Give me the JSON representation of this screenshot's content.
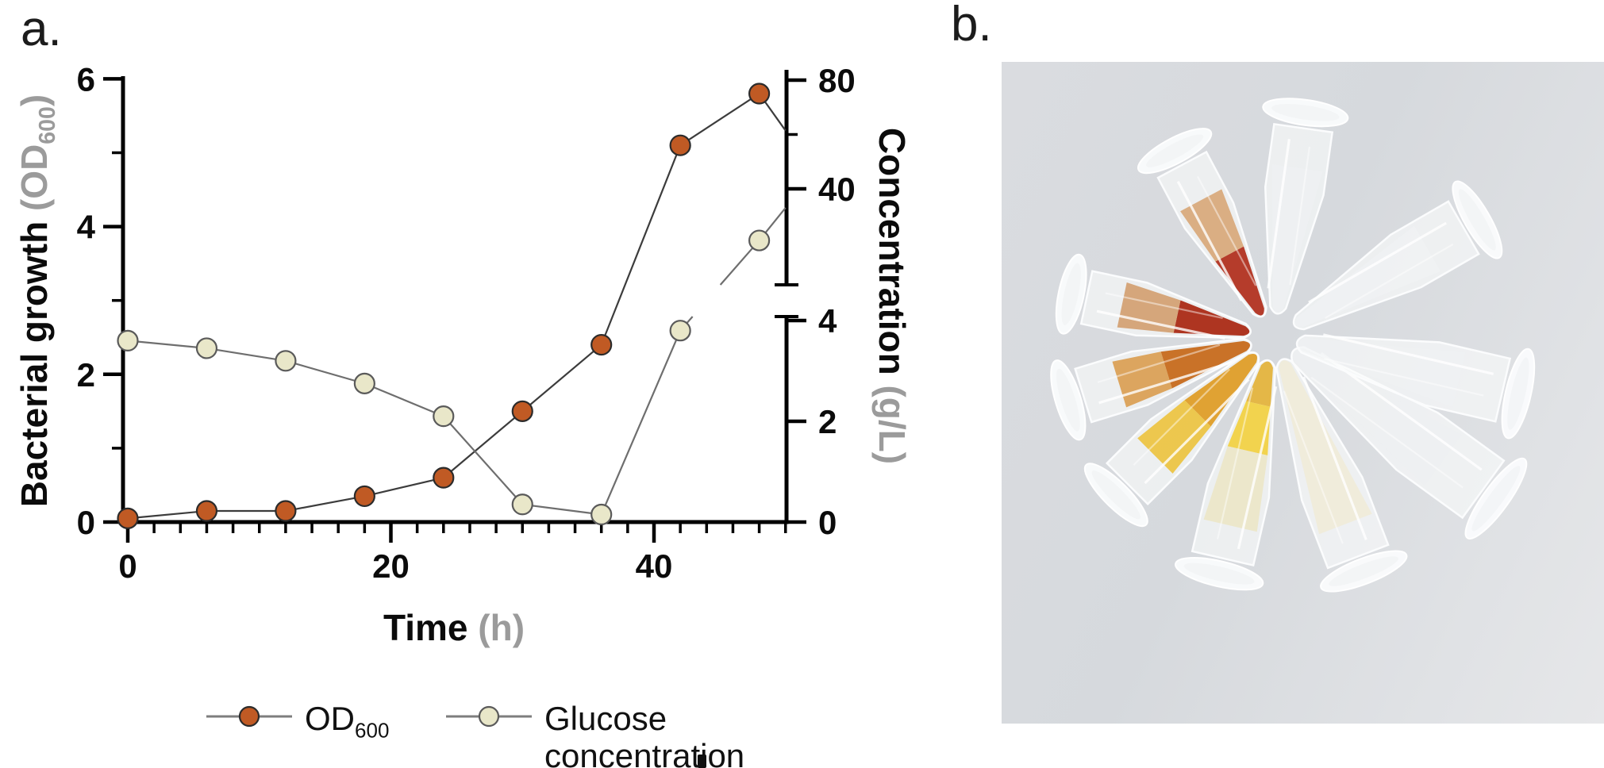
{
  "panel_a": {
    "label": "a."
  },
  "panel_b": {
    "label": "b."
  },
  "chart_data": {
    "type": "line",
    "title": "",
    "x_axis": {
      "label": "Time",
      "unit": "(h)",
      "ticks": [
        0,
        20,
        40
      ],
      "minor_tick_step": 2,
      "range": [
        0,
        50
      ]
    },
    "y_left_axis": {
      "label": "Bacterial growth",
      "unit_prefix": "(OD",
      "unit_sub": "600",
      "unit_suffix": ")",
      "ticks": [
        0,
        2,
        4,
        6
      ],
      "minor_ticks": [
        1,
        3,
        5
      ],
      "range": [
        0,
        6
      ]
    },
    "y_right_axis": {
      "label": "Concentration",
      "unit": "(g/L)",
      "axis_break": true,
      "lower_segment_ticks": [
        0,
        2,
        4
      ],
      "lower_segment_range": [
        0,
        4.1
      ],
      "upper_segment_ticks": [
        40,
        80
      ],
      "upper_segment_minor_ticks": [
        60
      ],
      "upper_segment_range": [
        5,
        84
      ]
    },
    "series": [
      {
        "name": "OD600",
        "axis": "left",
        "color": "#c05a24",
        "marker_outline": "#2b2b2b",
        "line_color": "#3c3c3c",
        "x": [
          0,
          6,
          12,
          18,
          24,
          30,
          36,
          42,
          48
        ],
        "y": [
          0.05,
          0.15,
          0.15,
          0.35,
          0.6,
          1.5,
          2.4,
          5.1,
          5.8
        ],
        "tail_segment_to": {
          "x": 50,
          "y": 5.3
        }
      },
      {
        "name": "Glucose concentration",
        "axis": "right",
        "color": "#e9e7c9",
        "marker_outline": "#5a5a5a",
        "line_color": "#6e6e6e",
        "x": [
          0,
          6,
          12,
          18,
          24,
          30,
          36,
          42,
          48
        ],
        "y": [
          3.6,
          3.45,
          3.2,
          2.75,
          2.1,
          0.35,
          0.15,
          3.8,
          21
        ],
        "tail_segment_to": {
          "x": 50,
          "y": 33
        }
      }
    ],
    "legend": [
      {
        "label": "OD",
        "sub": "600"
      },
      {
        "line1": "Glucose",
        "line2": "concentration"
      }
    ],
    "legend_position": "bottom",
    "grid": false
  },
  "photo": {
    "content": "ten microcentrifuge tubes arranged in a ring, tips to center",
    "background_color": "#d9dcdf",
    "tubes": [
      {
        "name": "tube-clear-top",
        "angle": 82,
        "dist": 340,
        "len": 300,
        "liquid": [
          {
            "from": 0,
            "to": 0.8,
            "color": "#f0f2f4",
            "opacity": 0.5
          }
        ]
      },
      {
        "name": "tube-orange-red-upper-left",
        "angle": 118,
        "dist": 315,
        "len": 280,
        "liquid": [
          {
            "from": 0,
            "to": 0.4,
            "color": "#b23120",
            "opacity": 0.95
          },
          {
            "from": 0.4,
            "to": 0.78,
            "color": "#d8a87a",
            "opacity": 0.92
          }
        ]
      },
      {
        "name": "tube-red-left",
        "angle": 168,
        "dist": 310,
        "len": 275,
        "liquid": [
          {
            "from": 0,
            "to": 0.44,
            "color": "#ab2a15",
            "opacity": 0.95
          },
          {
            "from": 0.44,
            "to": 0.8,
            "color": "#d2a071",
            "opacity": 0.92
          }
        ]
      },
      {
        "name": "tube-orange-lower-left",
        "angle": 197,
        "dist": 330,
        "len": 285,
        "liquid": [
          {
            "from": 0,
            "to": 0.5,
            "color": "#c76a1c",
            "opacity": 0.95
          },
          {
            "from": 0.5,
            "to": 0.8,
            "color": "#d99c4f",
            "opacity": 0.9
          }
        ]
      },
      {
        "name": "tube-amber-bottom-left",
        "angle": 225,
        "dist": 345,
        "len": 295,
        "liquid": [
          {
            "from": 0,
            "to": 0.45,
            "color": "#df9d28",
            "opacity": 0.95
          },
          {
            "from": 0.45,
            "to": 0.8,
            "color": "#ecc23c",
            "opacity": 0.9
          }
        ]
      },
      {
        "name": "tube-yellow-bottom",
        "angle": 257,
        "dist": 375,
        "len": 320,
        "liquid": [
          {
            "from": 0,
            "to": 0.2,
            "color": "#e3b034",
            "opacity": 0.9
          },
          {
            "from": 0.2,
            "to": 0.45,
            "color": "#f2d145",
            "opacity": 0.95
          },
          {
            "from": 0.45,
            "to": 0.85,
            "color": "#ece6c8",
            "opacity": 0.92
          }
        ]
      },
      {
        "name": "tube-cream-bottom-right",
        "angle": 291,
        "dist": 385,
        "len": 330,
        "liquid": [
          {
            "from": 0,
            "to": 0.85,
            "color": "#f0ebd7",
            "opacity": 0.85
          }
        ]
      },
      {
        "name": "tube-clear-lower-right",
        "angle": 324,
        "dist": 430,
        "len": 360,
        "liquid": [
          {
            "from": 0,
            "to": 0.8,
            "color": "#eef0f2",
            "opacity": 0.5
          }
        ]
      },
      {
        "name": "tube-clear-right",
        "angle": 347,
        "dist": 395,
        "len": 330,
        "liquid": [
          {
            "from": 0,
            "to": 0.8,
            "color": "#f0f2f4",
            "opacity": 0.5
          }
        ]
      },
      {
        "name": "tube-clear-upper-right",
        "angle": 30,
        "dist": 370,
        "len": 310,
        "liquid": [
          {
            "from": 0,
            "to": 0.8,
            "color": "#f1f3f5",
            "opacity": 0.5
          }
        ]
      }
    ]
  }
}
